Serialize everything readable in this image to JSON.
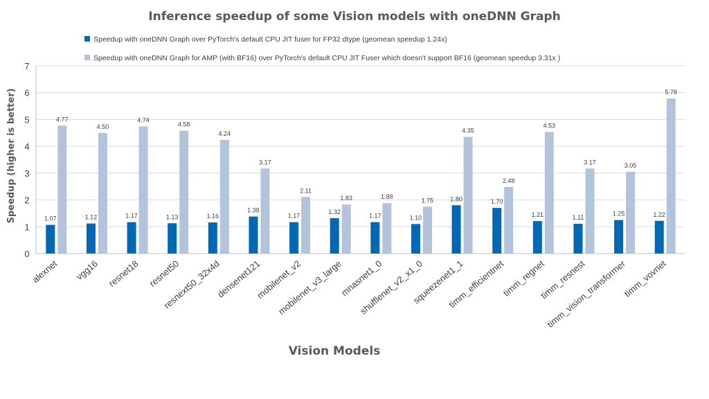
{
  "chart_data": {
    "type": "bar",
    "title": "Inference speedup of some Vision models with oneDNN Graph",
    "xlabel": "Vision Models",
    "ylabel": "Speedup (higher is better)",
    "ylim": [
      0,
      7
    ],
    "yticks": [
      0,
      1,
      2,
      3,
      4,
      5,
      6,
      7
    ],
    "grid": true,
    "legend_position": "top",
    "categories": [
      "alexnet",
      "vgg16",
      "resnet18",
      "resnet50",
      "resnext50_32x4d",
      "densenet121",
      "mobilenet_v2",
      "mobilenet_v3_large",
      "mnasnet1_0",
      "shufflenet_v2_x1_0",
      "squeezenet1_1",
      "timm_efficientnet",
      "timm_regnet",
      "timm_resnest",
      "timm_vision_transformer",
      "timm_vovnet"
    ],
    "series": [
      {
        "name": "Speedup with oneDNN Graph over PyTorch's default CPU JIT fuser for FP32 dtype (geomean speedup 1.24x)",
        "color": "#0068B5",
        "values": [
          1.07,
          1.12,
          1.17,
          1.13,
          1.16,
          1.38,
          1.17,
          1.32,
          1.17,
          1.1,
          1.8,
          1.7,
          1.21,
          1.11,
          1.25,
          1.22
        ],
        "labels": [
          "1.07",
          "1.12",
          "1.17",
          "1.13",
          "1.16",
          "1.38",
          "1.17",
          "1.32",
          "1.17",
          "1.10",
          "1.80",
          "1.70",
          "1.21",
          "1.11",
          "1.25",
          "1.22"
        ]
      },
      {
        "name": "Speedup with oneDNN Graph for AMP (with BF16) over PyTorch's default CPU JIT Fuser which doesn't support BF16 (geomean speedup 3.31x )",
        "color": "#B4C3DC",
        "values": [
          4.77,
          4.5,
          4.74,
          4.58,
          4.24,
          3.17,
          2.11,
          1.83,
          1.88,
          1.75,
          4.35,
          2.48,
          4.53,
          3.17,
          3.05,
          5.78
        ],
        "labels": [
          "4.77",
          "4.50",
          "4.74",
          "4.58",
          "4.24",
          "3.17",
          "2.11",
          "1.83",
          "1.88",
          "1.75",
          "4.35",
          "2.48",
          "4.53",
          "3.17",
          "3.05",
          "5.78"
        ]
      }
    ]
  }
}
